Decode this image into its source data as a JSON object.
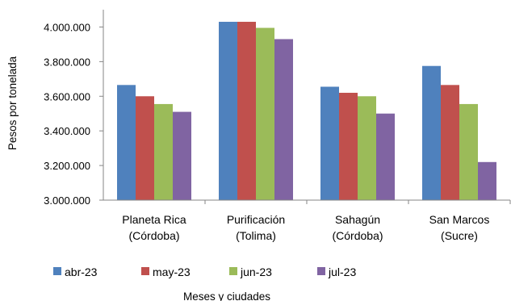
{
  "chart_data": {
    "type": "bar",
    "categories": [
      [
        "Planeta Rica",
        "(Córdoba)"
      ],
      [
        "Purificación",
        "(Tolima)"
      ],
      [
        "Sahagún",
        "(Córdoba)"
      ],
      [
        "San Marcos",
        "(Sucre)"
      ]
    ],
    "series": [
      {
        "name": "abr-23",
        "color": "#4F81BD",
        "values": [
          3665000,
          4030000,
          3655000,
          3775000
        ]
      },
      {
        "name": "may-23",
        "color": "#C0504D",
        "values": [
          3600000,
          4030000,
          3620000,
          3665000
        ]
      },
      {
        "name": "jun-23",
        "color": "#9BBB59",
        "values": [
          3555000,
          3995000,
          3600000,
          3555000
        ]
      },
      {
        "name": "jul-23",
        "color": "#8064A2",
        "values": [
          3510000,
          3930000,
          3500000,
          3220000
        ]
      }
    ],
    "xlabel": "Meses y ciudades",
    "ylabel": "Pesos por tonelada",
    "ylim": [
      3000000,
      4100000
    ],
    "yticks": [
      3000000,
      3200000,
      3400000,
      3600000,
      3800000,
      4000000
    ],
    "ytick_labels": [
      "3.000.000",
      "3.200.000",
      "3.400.000",
      "3.600.000",
      "3.800.000",
      "4.000.000"
    ],
    "grid": false,
    "legend_position": "bottom"
  }
}
